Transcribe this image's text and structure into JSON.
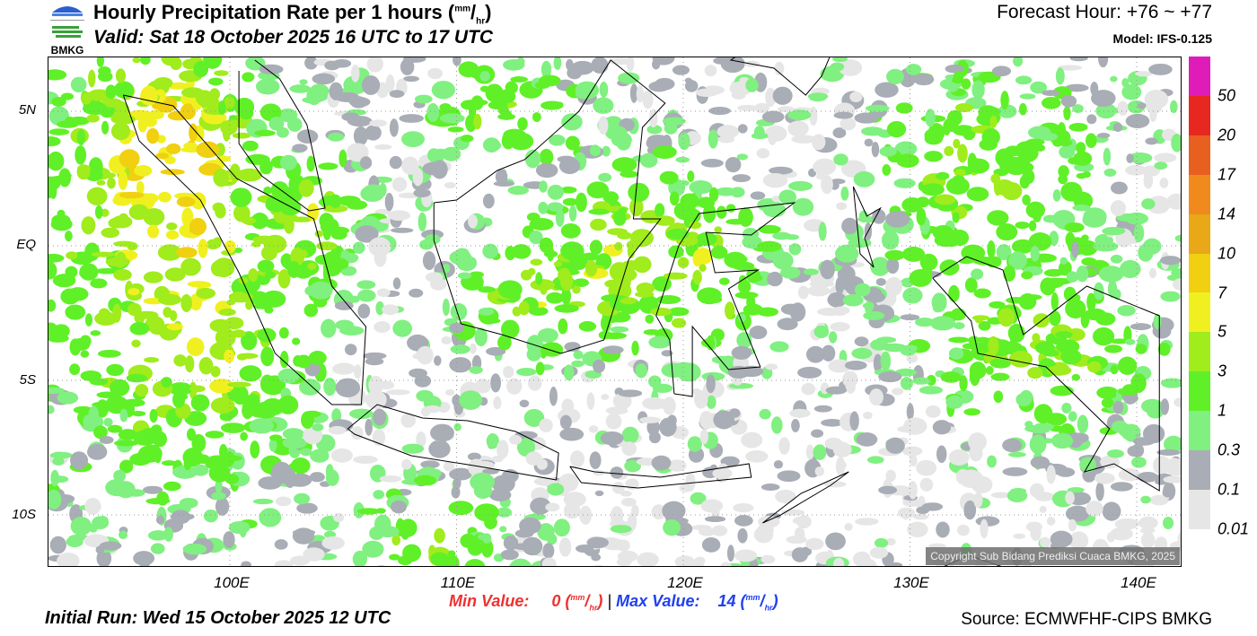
{
  "header": {
    "title": "Hourly Precipitation Rate per 1 hours",
    "unit_num": "mm",
    "unit_den": "hr",
    "valid": "Valid: Sat 18 October 2025 16 UTC to 17 UTC",
    "forecast_hour": "Forecast Hour: +76 ~ +77",
    "model": "Model: IFS-0.125",
    "logo_text": "BMKG"
  },
  "axes": {
    "lat_labels": [
      "5N",
      "EQ",
      "5S",
      "10S"
    ],
    "lon_labels": [
      "100E",
      "110E",
      "120E",
      "130E",
      "140E"
    ]
  },
  "colorbar": {
    "labels": [
      "50",
      "20",
      "17",
      "14",
      "10",
      "7",
      "5",
      "3",
      "1",
      "0.3",
      "0.1",
      "0.01"
    ],
    "colors": [
      "#e01cb8",
      "#e82820",
      "#e86020",
      "#f08a1c",
      "#e8a818",
      "#f0d010",
      "#f0f020",
      "#a0ec1c",
      "#60f028",
      "#80f080",
      "#a9adb5",
      "#e6e6e6"
    ]
  },
  "copyright": "Copyright Sub Bidang Prediksi Cuaca BMKG, 2025",
  "footer": {
    "min_label": "Min Value:",
    "min_value": "0",
    "max_label": "Max Value:",
    "max_value": "14",
    "unit_num": "mm",
    "unit_den": "hr",
    "initial_run": "Initial Run: Wed 15 October 2025 12 UTC",
    "source": "Source: ECMWFHF-CIPS BMKG"
  }
}
